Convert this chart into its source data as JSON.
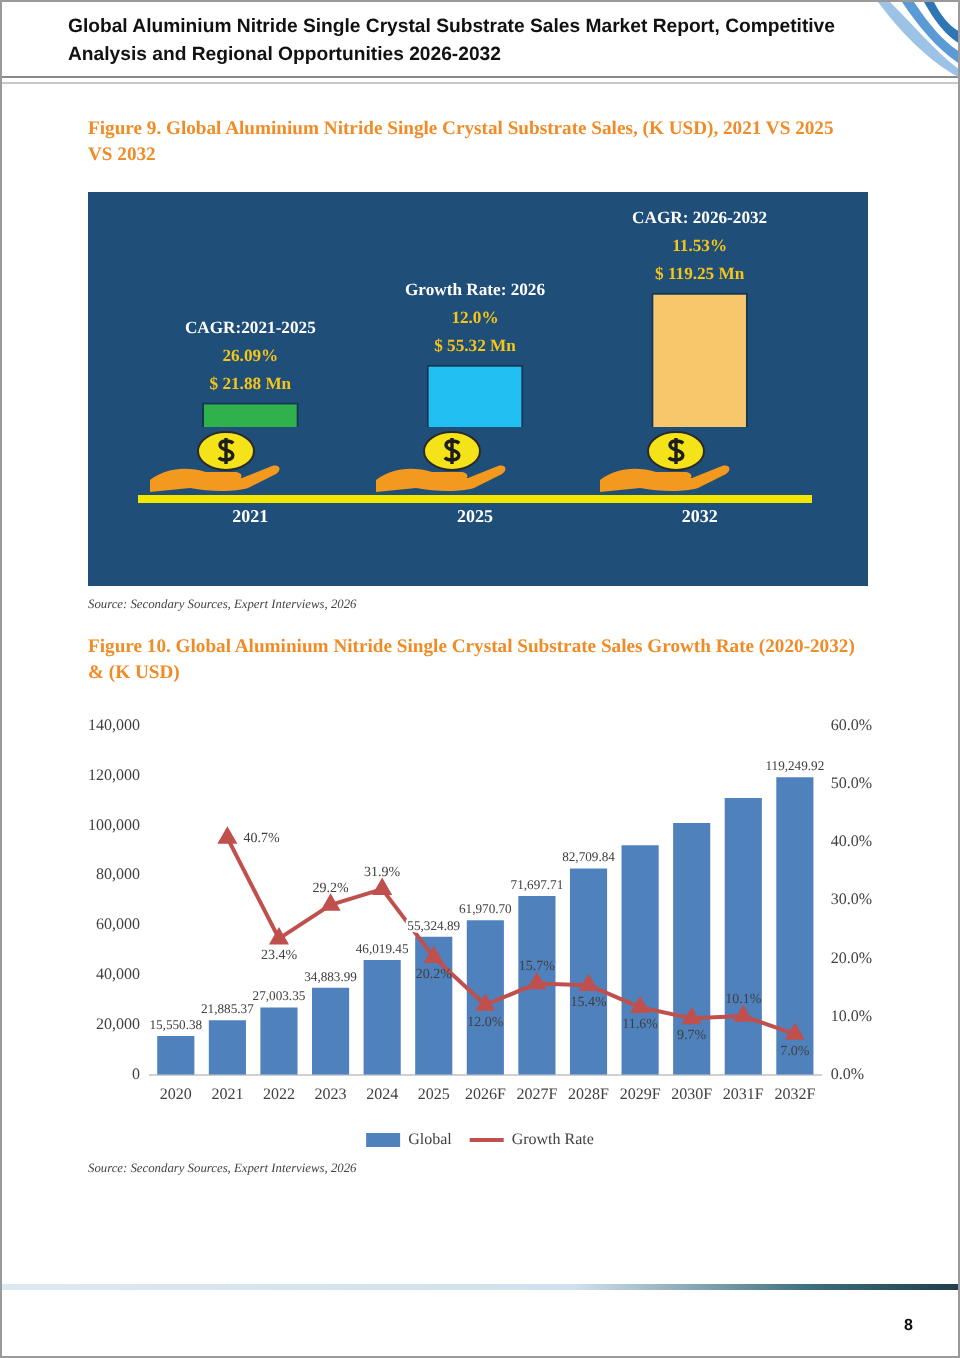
{
  "chart_data": [
    {
      "type": "bar",
      "title": "Global Aluminium Nitride Single Crystal Substrate Sales Market Report, Competitive Analysis and Regional Opportunities 2026-2032",
      "subtitle": "Figure 9. Global Aluminium Nitride Single Crystal Substrate Sales, (K USD), 2021 VS 2025 VS 2032",
      "categories": [
        "2021",
        "2025",
        "2032"
      ],
      "values": [
        21.88,
        55.32,
        119.25
      ],
      "colors": [
        "#2fb24c",
        "#22c0f2",
        "#f6c76b"
      ],
      "value_labels": [
        "$ 21.88 Mn",
        "$ 55.32 Mn",
        "$ 119.25 Mn"
      ],
      "tick_labels": "x",
      "annotations": [
        "CAGR:2021-2025",
        "26.09%",
        "Growth Rate: 2026",
        "12.0%",
        "CAGR: 2026-2032",
        "11.53%",
        "Source: Secondary Sources, Expert Interviews, 2026"
      ]
    },
    {
      "type": "bar",
      "title": "Figure 10. Global Aluminium Nitride Single Crystal Substrate Sales Growth Rate (2020-2032) & (K USD)",
      "categories": [
        "2020",
        "2021",
        "2022",
        "2023",
        "2024",
        "2025",
        "2026F",
        "2027F",
        "2028F",
        "2029F",
        "2030F",
        "2031F",
        "2032F"
      ],
      "series": [
        {
          "name": "Global",
          "type": "bar",
          "color": "#4f81bd",
          "values": [
            15550.38,
            21885.37,
            27003.35,
            34883.99,
            46019.45,
            55324.89,
            61970.7,
            71697.71,
            82709.84,
            92000,
            101000,
            111000,
            119249.92
          ],
          "value_labels": [
            "15,550.38",
            "21,885.37",
            "27,003.35",
            "34,883.99",
            "46,019.45",
            "55,324.89",
            "61,970.70",
            "71,697.71",
            "82,709.84",
            null,
            null,
            null,
            "119,249.92"
          ]
        },
        {
          "name": "Growth Rate",
          "type": "line",
          "axis": "y2",
          "color": "#c0504d",
          "values": [
            null,
            40.7,
            23.4,
            29.2,
            31.9,
            20.2,
            12.0,
            15.7,
            15.4,
            11.6,
            9.7,
            10.1,
            7.0
          ],
          "value_labels": [
            null,
            "40.7%",
            "23.4%",
            "29.2%",
            "31.9%",
            "20.2%",
            "12.0%",
            "15.7%",
            "15.4%",
            "11.6%",
            "9.7%",
            "10.1%",
            "7.0%"
          ]
        }
      ],
      "ylim": [
        0,
        140000
      ],
      "yticks": [
        0,
        {
          "value": 20000,
          "label": "20,000"
        },
        {
          "value": 40000,
          "label": "40,000"
        },
        {
          "value": 60000,
          "label": "60,000"
        },
        {
          "value": 80000,
          "label": "80,000"
        },
        {
          "value": 100000,
          "label": "100,000"
        },
        {
          "value": 120000,
          "label": "120,000"
        },
        {
          "value": 140000,
          "label": "140,000"
        }
      ],
      "y2lim": [
        0,
        60
      ],
      "y2ticks": [
        {
          "value": 0,
          "label": "0.0%"
        },
        {
          "value": 10,
          "label": "10.0%"
        },
        {
          "value": 20,
          "label": "20.0%"
        },
        {
          "value": 30,
          "label": "30.0%"
        },
        {
          "value": 40,
          "label": "40.0%"
        },
        {
          "value": 50,
          "label": "50.0%"
        },
        {
          "value": 60,
          "label": "60.0%"
        }
      ],
      "legend": "bottom",
      "marker": "triangle",
      "line_style": "solid",
      "annotations": [
        "Source: Secondary Sources, Expert Interviews, 2026",
        "8"
      ]
    }
  ]
}
